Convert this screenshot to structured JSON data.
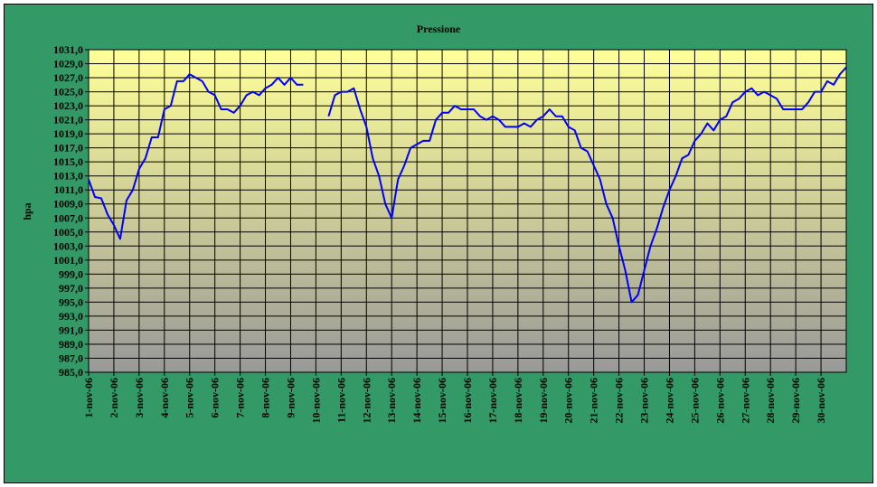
{
  "chart_data": {
    "type": "line",
    "title": "Pressione",
    "y_label": "hpa",
    "x": [
      1,
      1.25,
      1.5,
      1.75,
      2,
      2.25,
      2.5,
      2.75,
      3,
      3.25,
      3.5,
      3.75,
      4,
      4.25,
      4.5,
      4.75,
      5,
      5.25,
      5.5,
      5.75,
      6,
      6.25,
      6.5,
      6.75,
      7,
      7.25,
      7.5,
      7.75,
      8,
      8.25,
      8.5,
      8.75,
      9,
      9.25,
      9.5,
      9.75,
      10,
      10.25,
      10.5,
      10.75,
      11,
      11.25,
      11.5,
      11.75,
      12,
      12.25,
      12.5,
      12.75,
      13,
      13.25,
      13.5,
      13.75,
      14,
      14.25,
      14.5,
      14.75,
      15,
      15.25,
      15.5,
      15.75,
      16,
      16.25,
      16.5,
      16.75,
      17,
      17.25,
      17.5,
      17.75,
      18,
      18.25,
      18.5,
      18.75,
      19,
      19.25,
      19.5,
      19.75,
      20,
      20.25,
      20.5,
      20.75,
      21,
      21.25,
      21.5,
      21.75,
      22,
      22.25,
      22.5,
      22.75,
      23,
      23.25,
      23.5,
      23.75,
      24,
      24.25,
      24.5,
      24.75,
      25,
      25.25,
      25.5,
      25.75,
      26,
      26.25,
      26.5,
      26.75,
      27,
      27.25,
      27.5,
      27.75,
      28,
      28.25,
      28.5,
      28.75,
      29,
      29.25,
      29.5,
      29.75,
      30,
      30.25,
      30.5,
      30.75,
      31
    ],
    "series": [
      {
        "name": "Pressione",
        "color": "#0000ff",
        "values": [
          1012.5,
          1010,
          1009.8,
          1007.5,
          1006,
          1004,
          1009.5,
          1011,
          1014,
          1015.5,
          1018.5,
          1018.5,
          1022.5,
          1023,
          1026.5,
          1026.5,
          1027.5,
          1027,
          1026.5,
          1025,
          1024.5,
          1022.5,
          1022.5,
          1022,
          1023,
          1024.5,
          1025,
          1024.5,
          1025.5,
          1026,
          1027,
          1026,
          1027,
          1026,
          1026,
          null,
          null,
          null,
          1021.5,
          1024.5,
          1025,
          1025,
          1025.5,
          1022.5,
          1020,
          1015.5,
          1013,
          1009,
          1007,
          1012.5,
          1014.5,
          1017,
          1017.5,
          1018,
          1018,
          1021,
          1022,
          1022,
          1023,
          1022.5,
          1022.5,
          1022.5,
          1021.5,
          1021,
          1021.5,
          1021,
          1020,
          1020,
          1020,
          1020.5,
          1020,
          1021,
          1021.5,
          1022.5,
          1021.5,
          1021.5,
          1020,
          1019.5,
          1017,
          1016.5,
          1014.5,
          1012.5,
          1009,
          1007,
          1003,
          999.5,
          995,
          996,
          999.5,
          1003,
          1005.5,
          1008.5,
          1011,
          1013,
          1015.5,
          1016,
          1018,
          1019,
          1020.5,
          1019.5,
          1021,
          1021.5,
          1023.5,
          1024,
          1025,
          1025.5,
          1024.5,
          1025,
          1024.5,
          1024,
          1022.5,
          1022.5,
          1022.5,
          1022.5,
          1023.5,
          1025,
          1025,
          1026.5,
          1026,
          1027.5,
          1028.5
        ]
      }
    ],
    "xlim": [
      1,
      31
    ],
    "xticks": [
      {
        "value": 1,
        "label": "1-nov-06"
      },
      {
        "value": 2,
        "label": "2-nov-06"
      },
      {
        "value": 3,
        "label": "3-nov-06"
      },
      {
        "value": 4,
        "label": "4-nov-06"
      },
      {
        "value": 5,
        "label": "5-nov-06"
      },
      {
        "value": 6,
        "label": "6-nov-06"
      },
      {
        "value": 7,
        "label": "7-nov-06"
      },
      {
        "value": 8,
        "label": "8-nov-06"
      },
      {
        "value": 9,
        "label": "9-nov-06"
      },
      {
        "value": 10,
        "label": "10-nov-06"
      },
      {
        "value": 11,
        "label": "11-nov-06"
      },
      {
        "value": 12,
        "label": "12-nov-06"
      },
      {
        "value": 13,
        "label": "13-nov-06"
      },
      {
        "value": 14,
        "label": "14-nov-06"
      },
      {
        "value": 15,
        "label": "15-nov-06"
      },
      {
        "value": 16,
        "label": "16-nov-06"
      },
      {
        "value": 17,
        "label": "17-nov-06"
      },
      {
        "value": 18,
        "label": "18-nov-06"
      },
      {
        "value": 19,
        "label": "19-nov-06"
      },
      {
        "value": 20,
        "label": "20-nov-06"
      },
      {
        "value": 21,
        "label": "21-nov-06"
      },
      {
        "value": 22,
        "label": "22-nov-06"
      },
      {
        "value": 23,
        "label": "23-nov-06"
      },
      {
        "value": 24,
        "label": "24-nov-06"
      },
      {
        "value": 25,
        "label": "25-nov-06"
      },
      {
        "value": 26,
        "label": "26-nov-06"
      },
      {
        "value": 27,
        "label": "27-nov-06"
      },
      {
        "value": 28,
        "label": "28-nov-06"
      },
      {
        "value": 29,
        "label": "29-nov-06"
      },
      {
        "value": 30,
        "label": "30-nov-06"
      }
    ],
    "ylim": [
      985,
      1031
    ],
    "yticks": [
      {
        "value": 985,
        "label": "985,0"
      },
      {
        "value": 987,
        "label": "987,0"
      },
      {
        "value": 989,
        "label": "989,0"
      },
      {
        "value": 991,
        "label": "991,0"
      },
      {
        "value": 993,
        "label": "993,0"
      },
      {
        "value": 995,
        "label": "995,0"
      },
      {
        "value": 997,
        "label": "997,0"
      },
      {
        "value": 999,
        "label": "999,0"
      },
      {
        "value": 1001,
        "label": "1001,0"
      },
      {
        "value": 1003,
        "label": "1003,0"
      },
      {
        "value": 1005,
        "label": "1005,0"
      },
      {
        "value": 1007,
        "label": "1007,0"
      },
      {
        "value": 1009,
        "label": "1009,0"
      },
      {
        "value": 1011,
        "label": "1011,0"
      },
      {
        "value": 1013,
        "label": "1013,0"
      },
      {
        "value": 1015,
        "label": "1015,0"
      },
      {
        "value": 1017,
        "label": "1017,0"
      },
      {
        "value": 1019,
        "label": "1019,0"
      },
      {
        "value": 1021,
        "label": "1021,0"
      },
      {
        "value": 1023,
        "label": "1023,0"
      },
      {
        "value": 1025,
        "label": "1025,0"
      },
      {
        "value": 1027,
        "label": "1027,0"
      },
      {
        "value": 1029,
        "label": "1029,0"
      },
      {
        "value": 1031,
        "label": "1031,0"
      }
    ],
    "grid": true
  }
}
